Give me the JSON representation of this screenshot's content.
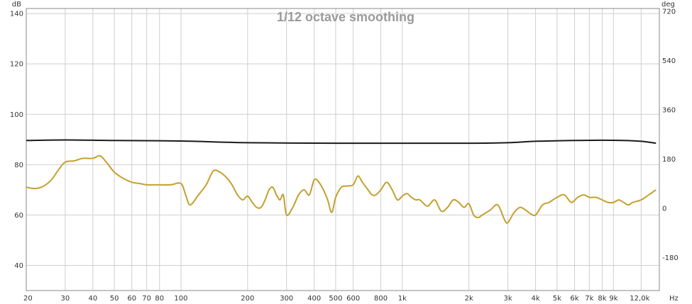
{
  "chart_data": {
    "type": "line",
    "title": "1/12 octave smoothing",
    "xscale": "log",
    "xlim": [
      20,
      14500
    ],
    "x_unit": "Hz",
    "x_ticks": [
      20,
      30,
      40,
      50,
      60,
      70,
      80,
      100,
      200,
      300,
      400,
      500,
      600,
      800,
      1000,
      2000,
      3000,
      4000,
      5000,
      6000,
      7000,
      8000,
      9000,
      12000
    ],
    "x_tick_labels": [
      "20",
      "30",
      "40",
      "50",
      "60",
      "70",
      "80",
      "100",
      "200",
      "300",
      "400",
      "500",
      "600",
      "800",
      "1k",
      "2k",
      "3k",
      "4k",
      "5k",
      "6k",
      "7k",
      "8k",
      "9k",
      "12,0k"
    ],
    "y_left": {
      "unit": "dB",
      "ylim": [
        30,
        142
      ],
      "ticks": [
        40,
        60,
        80,
        100,
        120,
        140
      ]
    },
    "y_right": {
      "unit": "deg",
      "ylim": [
        -300,
        730
      ],
      "ticks": [
        -180,
        0,
        180,
        360,
        540,
        720
      ],
      "tick_labels": [
        "-180",
        "0",
        "180",
        "360",
        "540",
        "720"
      ]
    },
    "grid": true,
    "colors": {
      "spl": "#c4a02e",
      "phase": "#1a1a1a",
      "grid": "#cfcfcf",
      "title": "#9a9a9a"
    },
    "series": [
      {
        "axis": "left",
        "x": [
          20,
          22,
          24,
          26,
          28,
          30,
          33,
          36,
          40,
          43,
          46,
          50,
          55,
          60,
          65,
          70,
          80,
          90,
          100,
          105,
          110,
          120,
          130,
          140,
          150,
          160,
          170,
          180,
          190,
          200,
          210,
          220,
          230,
          240,
          250,
          260,
          270,
          280,
          290,
          300,
          320,
          340,
          360,
          380,
          400,
          420,
          440,
          460,
          480,
          500,
          530,
          560,
          600,
          630,
          660,
          700,
          730,
          760,
          800,
          850,
          900,
          950,
          1000,
          1050,
          1100,
          1150,
          1200,
          1300,
          1400,
          1500,
          1600,
          1700,
          1800,
          1900,
          2000,
          2100,
          2200,
          2300,
          2500,
          2700,
          2900,
          3000,
          3200,
          3400,
          3600,
          3800,
          4000,
          4300,
          4600,
          5000,
          5400,
          5800,
          6200,
          6600,
          7000,
          7500,
          8000,
          8500,
          9000,
          9500,
          10000,
          10500,
          11000,
          12000,
          13000,
          14000
        ],
        "values": [
          71,
          70.5,
          71.5,
          74,
          78,
          81,
          81.5,
          82.5,
          82.5,
          83.5,
          81,
          77,
          74.5,
          73,
          72.5,
          72,
          72,
          72,
          72.5,
          68,
          64,
          68,
          72,
          77.5,
          77,
          75,
          72,
          68,
          66,
          67.5,
          65,
          63,
          63,
          66,
          70,
          71,
          68,
          66,
          68,
          60,
          63,
          68,
          70,
          68,
          74,
          73,
          70,
          66,
          61,
          67,
          71,
          71.5,
          72,
          75.5,
          73,
          70,
          68,
          68,
          70,
          73,
          70,
          66,
          67.5,
          68.5,
          67,
          66,
          66,
          63.5,
          66,
          61.5,
          63,
          66,
          65,
          63,
          64.5,
          60,
          59,
          60,
          62,
          64,
          58,
          57,
          61,
          63,
          62,
          60.5,
          60,
          64,
          65,
          67,
          68,
          65,
          67,
          68,
          67,
          67,
          66,
          65,
          65,
          66,
          65,
          64,
          65,
          66,
          68,
          70
        ]
      },
      {
        "axis": "right",
        "x": [
          20,
          30,
          50,
          100,
          200,
          500,
          1000,
          2000,
          3000,
          4000,
          6000,
          8000,
          10000,
          12000,
          14000
        ],
        "values": [
          248,
          250,
          248,
          246,
          240,
          238,
          238,
          238,
          240,
          245,
          248,
          249,
          248,
          245,
          238
        ]
      }
    ]
  }
}
